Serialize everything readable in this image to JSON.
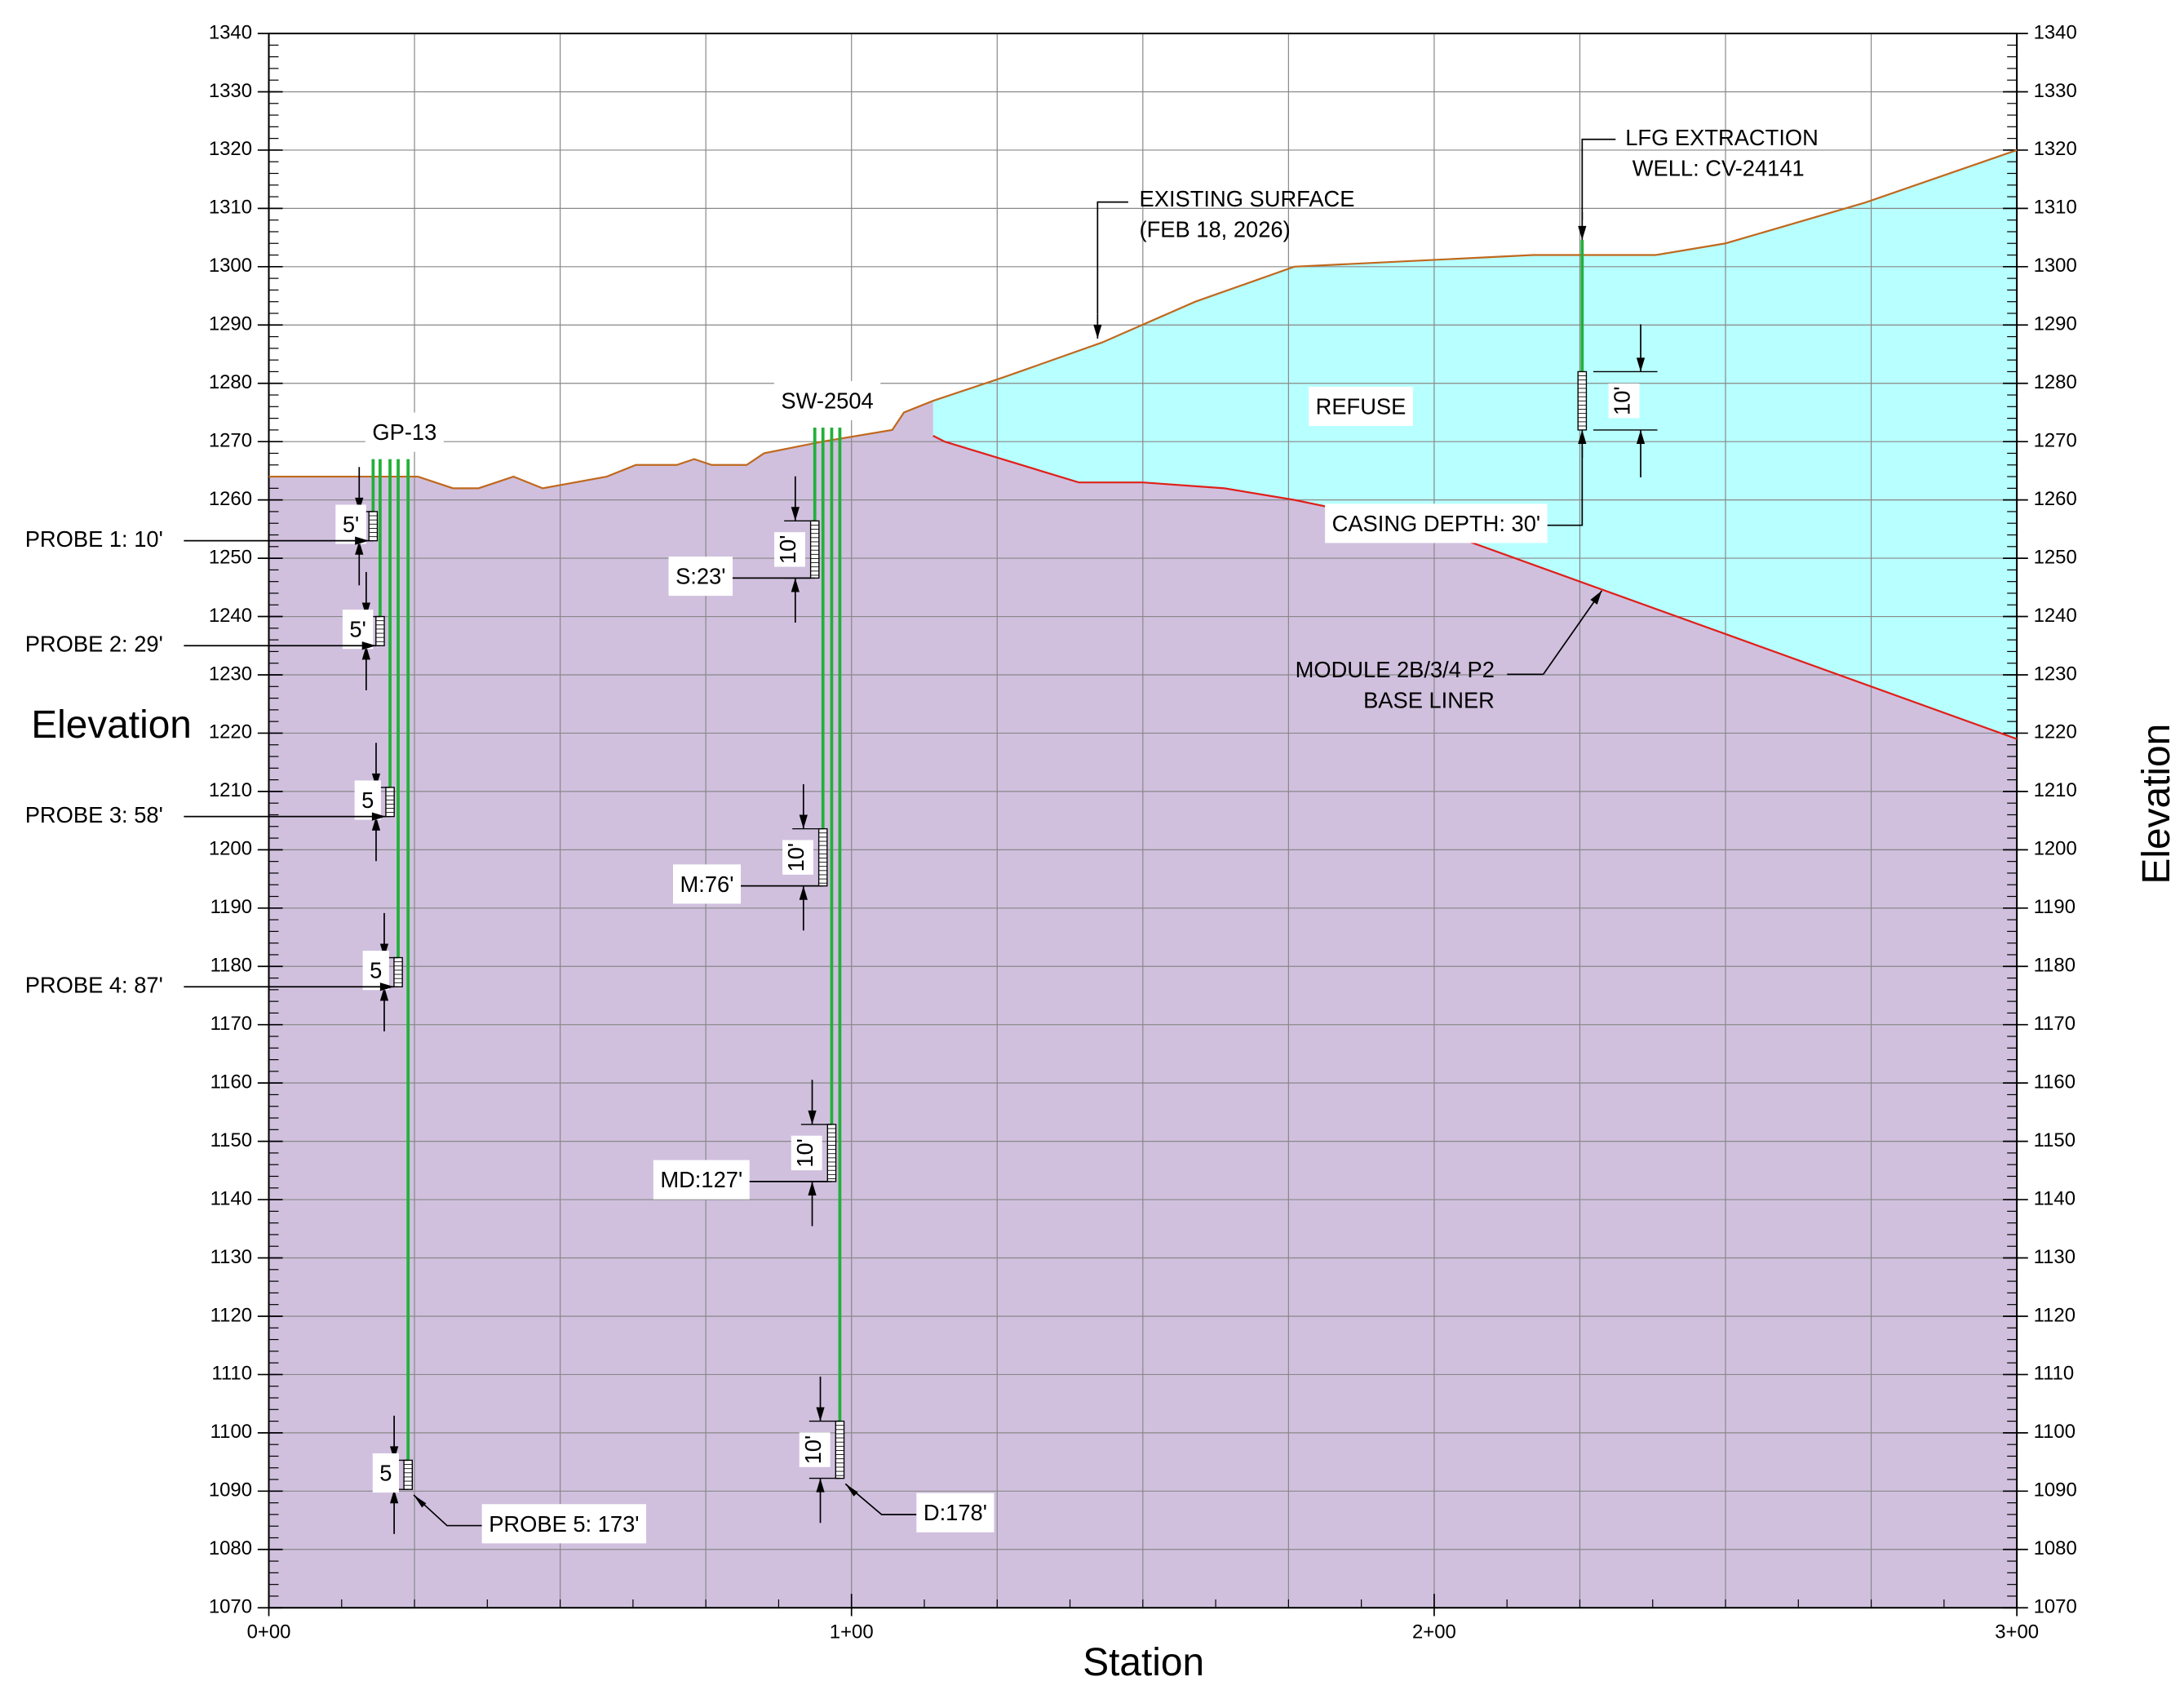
{
  "chart_data": {
    "type": "profile",
    "xlabel": "Station",
    "ylabel": "Elevation",
    "xlim": [
      0,
      300
    ],
    "ylim": [
      1070,
      1340
    ],
    "xticks": [
      {
        "value": 0,
        "label": "0+00"
      },
      {
        "value": 100,
        "label": "1+00"
      },
      {
        "value": 200,
        "label": "2+00"
      },
      {
        "value": 300,
        "label": "3+00"
      }
    ],
    "yticks": [
      1070,
      1080,
      1090,
      1100,
      1110,
      1120,
      1130,
      1140,
      1150,
      1160,
      1170,
      1180,
      1190,
      1200,
      1210,
      1220,
      1230,
      1240,
      1250,
      1260,
      1270,
      1280,
      1290,
      1300,
      1310,
      1320,
      1330,
      1340
    ],
    "grid": true,
    "minor_x_step": 25,
    "minor_y_step": 2,
    "ground_color": "#d0c0de",
    "refuse_color": "#b8ffff",
    "surface": {
      "color": "#c0691e",
      "x": [
        0,
        14,
        25.6,
        31.6,
        36,
        42,
        47,
        58,
        63,
        70,
        73,
        76,
        82,
        85,
        95,
        107,
        109,
        114,
        126,
        143,
        159,
        176,
        217,
        238,
        250,
        274,
        300
      ],
      "y": [
        1264,
        1264,
        1264,
        1262,
        1262,
        1264,
        1262,
        1264,
        1266,
        1266,
        1267,
        1266,
        1266,
        1268,
        1270,
        1272,
        1275,
        1277,
        1281,
        1287,
        1294,
        1300,
        1302,
        1302,
        1304,
        1311,
        1320
      ]
    },
    "liner": {
      "color": "#e0201a",
      "x": [
        114,
        116,
        139,
        150,
        164,
        176,
        200,
        225,
        250,
        300
      ],
      "y": [
        1271,
        1270,
        1263,
        1263,
        1262,
        1260,
        1255,
        1246,
        1237,
        1219
      ]
    },
    "surface_label": [
      "EXISTING SURFACE",
      "(FEB 18, 2026)"
    ],
    "refuse_label": "REFUSE",
    "liner_label": [
      "MODULE 2B/3/4 P2",
      "BASE LINER"
    ],
    "wells": [
      {
        "name": "GP-13",
        "top": 1267,
        "probes": [
          {
            "x": 17.9,
            "top": 1258,
            "bottom": 1253,
            "label": "PROBE 1: 10'",
            "dim": "5'"
          },
          {
            "x": 19.1,
            "top": 1240,
            "bottom": 1235,
            "label": "PROBE 2: 29'",
            "dim": "5'"
          },
          {
            "x": 20.8,
            "top": 1210.7,
            "bottom": 1205.7,
            "label": "PROBE 3: 58'",
            "dim": "5"
          },
          {
            "x": 22.2,
            "top": 1181.5,
            "bottom": 1176.5,
            "label": "PROBE 4: 87'",
            "dim": "5"
          },
          {
            "x": 23.9,
            "top": 1095.3,
            "bottom": 1090.3,
            "label": "PROBE 5: 173'",
            "dim": "5"
          }
        ]
      },
      {
        "name": "SW-2504",
        "top": 1272.4,
        "probes": [
          {
            "x": 93.7,
            "top": 1256.4,
            "bottom": 1246.6,
            "label": "S:23'",
            "dim": "10'"
          },
          {
            "x": 95.1,
            "top": 1203.6,
            "bottom": 1193.8,
            "label": "M:76'",
            "dim": "10'"
          },
          {
            "x": 96.6,
            "top": 1152.9,
            "bottom": 1143.1,
            "label": "MD:127'",
            "dim": "10'"
          },
          {
            "x": 98.0,
            "top": 1102,
            "bottom": 1092.2,
            "label": "D:178'",
            "dim": "10'"
          }
        ]
      }
    ],
    "lfg_well": {
      "label": [
        "LFG EXTRACTION",
        "WELL: CV-24141"
      ],
      "x": 225.4,
      "top": 1304.6,
      "screen_top": 1282,
      "screen_bottom": 1272,
      "dim": "10'",
      "casing_label": "CASING DEPTH: 30'"
    },
    "well_color": "#22b03a"
  }
}
